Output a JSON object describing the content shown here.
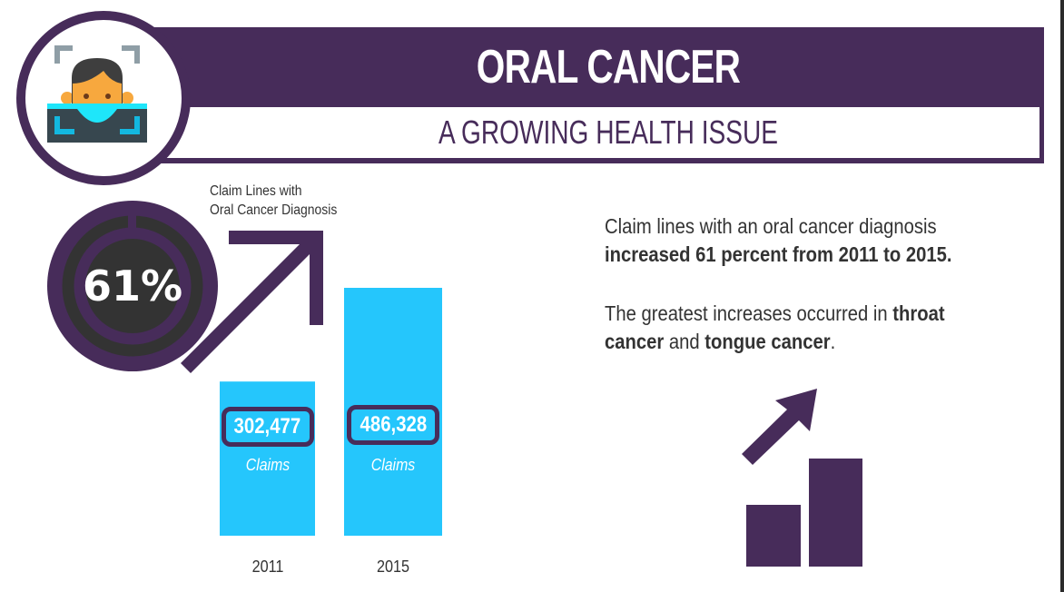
{
  "header": {
    "title": "ORAL CANCER",
    "subtitle": "A GROWING HEALTH ISSUE",
    "logo_icon": "face-scan-icon"
  },
  "colors": {
    "brand_purple": "#472c5a",
    "bar_blue": "#25c6fc",
    "dark_gray": "#333333",
    "white": "#ffffff"
  },
  "stat": {
    "percent_label": "61%",
    "percent_value": 61,
    "caption_line1": "Claim Lines with",
    "caption_line2": "Oral Cancer Diagnosis",
    "arrow_icon": "trend-up-arrow-icon"
  },
  "chart_data": {
    "type": "bar",
    "title": "Claim Lines with Oral Cancer Diagnosis",
    "xlabel": "",
    "ylabel": "Claims",
    "categories": [
      "2011",
      "2015"
    ],
    "values": [
      302477,
      486328
    ],
    "value_labels": [
      "302,477",
      "486,328"
    ],
    "unit_label": "Claims",
    "ylim": [
      0,
      486328
    ],
    "grid": false,
    "legend": "none"
  },
  "summary": {
    "p1_normal": "Claim lines with an oral cancer diagnosis",
    "p1_bold": "increased 61 percent from 2011 to 2015.",
    "p2_normal1": "The greatest increases occurred in ",
    "p2_bold1": "throat",
    "p2_bold2": "cancer",
    "p2_normal2": " and ",
    "p2_bold3": "tongue cancer",
    "p2_end": ".",
    "growth_icon": "growth-chart-icon"
  }
}
